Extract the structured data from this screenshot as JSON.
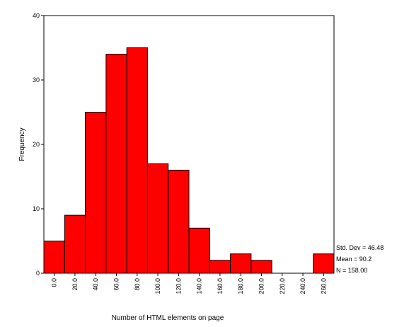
{
  "chart_data": {
    "type": "bar",
    "title": "",
    "xlabel": "Number of HTML elements on page",
    "ylabel": "Frequency",
    "ylim": [
      0,
      40
    ],
    "yticks": [
      0,
      10,
      20,
      30,
      40
    ],
    "bins": [
      {
        "x": 0.0,
        "value": 5
      },
      {
        "x": 20.0,
        "value": 9
      },
      {
        "x": 40.0,
        "value": 25
      },
      {
        "x": 60.0,
        "value": 34
      },
      {
        "x": 80.0,
        "value": 35
      },
      {
        "x": 100.0,
        "value": 17
      },
      {
        "x": 120.0,
        "value": 16
      },
      {
        "x": 140.0,
        "value": 7
      },
      {
        "x": 160.0,
        "value": 2
      },
      {
        "x": 180.0,
        "value": 3
      },
      {
        "x": 200.0,
        "value": 2
      },
      {
        "x": 220.0,
        "value": 0
      },
      {
        "x": 240.0,
        "value": 0
      },
      {
        "x": 260.0,
        "value": 3
      }
    ],
    "xtick_labels": [
      "0.0",
      "20.0",
      "40.0",
      "60.0",
      "80.0",
      "100.0",
      "120.0",
      "140.0",
      "160.0",
      "180.0",
      "200.0",
      "220.0",
      "240.0",
      "260.0"
    ],
    "stats": {
      "std_dev": "Std. Dev = 46.48",
      "mean": "Mean = 90.2",
      "n": "N = 158.00"
    },
    "grid": false,
    "colors": {
      "bar_fill": "#ff0000",
      "bar_stroke": "#000000"
    }
  }
}
